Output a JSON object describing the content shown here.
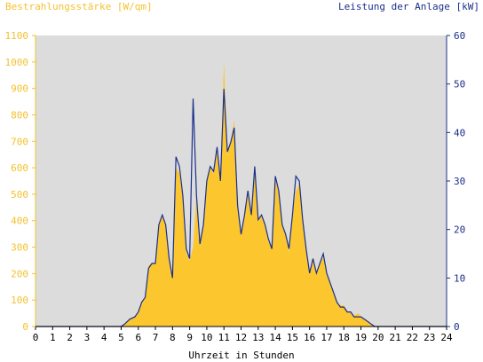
{
  "chart_data": {
    "type": "area",
    "title": "",
    "ylabel_left": "Bestrahlungsstärke [W/qm]",
    "ylabel_right": "Leistung der Anlage [kW]",
    "xlabel": "Uhrzeit in Stunden",
    "xlim": [
      0,
      24
    ],
    "ylim_left": [
      0,
      1100
    ],
    "ylim_right": [
      0,
      60
    ],
    "x_ticks": [
      "0",
      "1",
      "2",
      "3",
      "4",
      "5",
      "6",
      "7",
      "8",
      "9",
      "10",
      "11",
      "12",
      "13",
      "14",
      "15",
      "16",
      "17",
      "18",
      "19",
      "20",
      "21",
      "22",
      "23",
      "24"
    ],
    "y_ticks_left": [
      "0",
      "100",
      "200",
      "300",
      "400",
      "500",
      "600",
      "700",
      "800",
      "900",
      "1000",
      "1100"
    ],
    "y_ticks_right": [
      "0",
      "10",
      "20",
      "30",
      "40",
      "50",
      "60"
    ],
    "grid": false,
    "background": "#dcdcdc",
    "colors": {
      "irradiance_fill": "#fcc72e",
      "power_line": "#1a2f8a",
      "left_axis": "#f2c230",
      "right_axis": "#1a2f8a"
    },
    "series": [
      {
        "name": "Bestrahlungsstärke [W/qm]",
        "axis": "left",
        "style": "area",
        "x": [
          0,
          5,
          5.2,
          5.5,
          5.8,
          6.0,
          6.2,
          6.4,
          6.6,
          6.8,
          7.0,
          7.2,
          7.4,
          7.6,
          7.8,
          8.0,
          8.2,
          8.4,
          8.6,
          8.8,
          9.0,
          9.2,
          9.4,
          9.6,
          9.8,
          10.0,
          10.2,
          10.4,
          10.6,
          10.8,
          11.0,
          11.2,
          11.4,
          11.6,
          11.8,
          12.0,
          12.2,
          12.4,
          12.6,
          12.8,
          13.0,
          13.2,
          13.4,
          13.6,
          13.8,
          14.0,
          14.2,
          14.4,
          14.6,
          14.8,
          15.0,
          15.2,
          15.4,
          15.6,
          15.8,
          16.0,
          16.2,
          16.4,
          16.6,
          16.8,
          17.0,
          17.2,
          17.4,
          17.6,
          17.8,
          18.0,
          18.2,
          18.4,
          18.6,
          18.8,
          19.0,
          19.2,
          19.4,
          19.6,
          19.8,
          20.0,
          24
        ],
        "y": [
          0,
          0,
          10,
          25,
          40,
          50,
          90,
          110,
          230,
          240,
          240,
          380,
          420,
          380,
          250,
          180,
          600,
          580,
          480,
          280,
          250,
          300,
          500,
          300,
          380,
          550,
          600,
          580,
          680,
          550,
          1000,
          650,
          700,
          780,
          450,
          350,
          420,
          500,
          420,
          600,
          400,
          420,
          380,
          320,
          300,
          560,
          500,
          380,
          350,
          280,
          420,
          510,
          540,
          400,
          280,
          200,
          250,
          200,
          240,
          260,
          200,
          170,
          130,
          90,
          80,
          80,
          60,
          50,
          40,
          50,
          40,
          30,
          20,
          10,
          0,
          0,
          0
        ]
      },
      {
        "name": "Leistung der Anlage [kW]",
        "axis": "right",
        "style": "line",
        "x": [
          0,
          5,
          5.2,
          5.5,
          5.8,
          6.0,
          6.2,
          6.4,
          6.6,
          6.8,
          7.0,
          7.2,
          7.4,
          7.6,
          7.8,
          8.0,
          8.2,
          8.4,
          8.6,
          8.8,
          9.0,
          9.2,
          9.4,
          9.6,
          9.8,
          10.0,
          10.2,
          10.4,
          10.6,
          10.8,
          11.0,
          11.2,
          11.4,
          11.6,
          11.8,
          12.0,
          12.2,
          12.4,
          12.6,
          12.8,
          13.0,
          13.2,
          13.4,
          13.6,
          13.8,
          14.0,
          14.2,
          14.4,
          14.6,
          14.8,
          15.0,
          15.2,
          15.4,
          15.6,
          15.8,
          16.0,
          16.2,
          16.4,
          16.6,
          16.8,
          17.0,
          17.2,
          17.4,
          17.6,
          17.8,
          18.0,
          18.2,
          18.4,
          18.6,
          18.8,
          19.0,
          19.2,
          19.4,
          19.6,
          19.8,
          20.0,
          24
        ],
        "y": [
          0,
          0,
          0.5,
          1.5,
          2,
          3,
          5,
          6,
          12,
          13,
          13,
          21,
          23,
          21,
          14,
          10,
          35,
          33,
          27,
          16,
          14,
          47,
          27,
          17,
          21,
          30,
          33,
          32,
          37,
          30,
          49,
          36,
          38,
          41,
          25,
          19,
          23,
          28,
          23,
          33,
          22,
          23,
          21,
          18,
          16,
          31,
          28,
          21,
          19,
          16,
          23,
          31,
          30,
          22,
          16,
          11,
          14,
          11,
          13,
          15,
          11,
          9,
          7,
          5,
          4,
          4,
          3,
          3,
          2,
          2,
          2,
          1.5,
          1,
          0.5,
          0,
          0,
          0
        ]
      }
    ]
  }
}
